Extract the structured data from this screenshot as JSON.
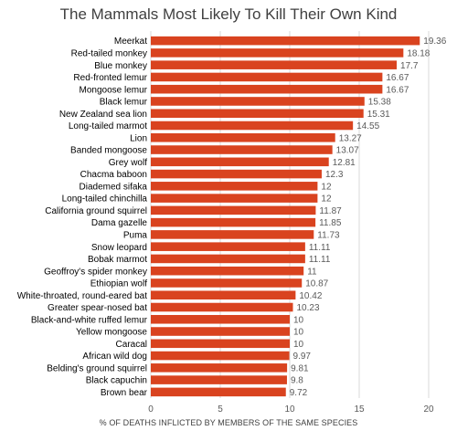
{
  "chart_data": {
    "type": "bar",
    "orientation": "horizontal",
    "title": "The Mammals Most Likely To Kill Their Own Kind",
    "xlabel": "% OF DEATHS INFLICTED BY MEMBERS OF THE SAME SPECIES",
    "ylabel": "",
    "xlim": [
      0,
      20
    ],
    "xticks": [
      "0",
      "5",
      "10",
      "15",
      "20"
    ],
    "grid": true,
    "legend": "none",
    "bar_color": "#D9431F",
    "categories": [
      "Meerkat",
      "Red-tailed monkey",
      "Blue monkey",
      "Red-fronted lemur",
      "Mongoose lemur",
      "Black lemur",
      "New Zealand sea lion",
      "Long-tailed marmot",
      "Lion",
      "Banded mongoose",
      "Grey wolf",
      "Chacma baboon",
      "Diademed sifaka",
      "Long-tailed chinchilla",
      "California ground squirrel",
      "Dama gazelle",
      "Puma",
      "Snow leopard",
      "Bobak marmot",
      "Geoffroy's spider monkey",
      "Ethiopian wolf",
      "White-throated, round-eared bat",
      "Greater spear-nosed bat",
      "Black-and-white ruffed lemur",
      "Yellow mongoose",
      "Caracal",
      "African wild dog",
      "Belding's ground squirrel",
      "Black capuchin",
      "Brown bear"
    ],
    "values": [
      19.36,
      18.18,
      17.7,
      16.67,
      16.67,
      15.38,
      15.31,
      14.55,
      13.27,
      13.07,
      12.81,
      12.3,
      12,
      12,
      11.87,
      11.85,
      11.73,
      11.11,
      11.11,
      11,
      10.87,
      10.42,
      10.23,
      10,
      10,
      10,
      9.97,
      9.81,
      9.8,
      9.72
    ],
    "labels": [
      "19.36",
      "18.18",
      "17.7",
      "16.67",
      "16.67",
      "15.38",
      "15.31",
      "14.55",
      "13.27",
      "13.07",
      "12.81",
      "12.3",
      "12",
      "12",
      "11.87",
      "11.85",
      "11.73",
      "11.11",
      "11.11",
      "11",
      "10.87",
      "10.42",
      "10.23",
      "10",
      "10",
      "10",
      "9.97",
      "9.81",
      "9.8",
      "9.72"
    ]
  }
}
